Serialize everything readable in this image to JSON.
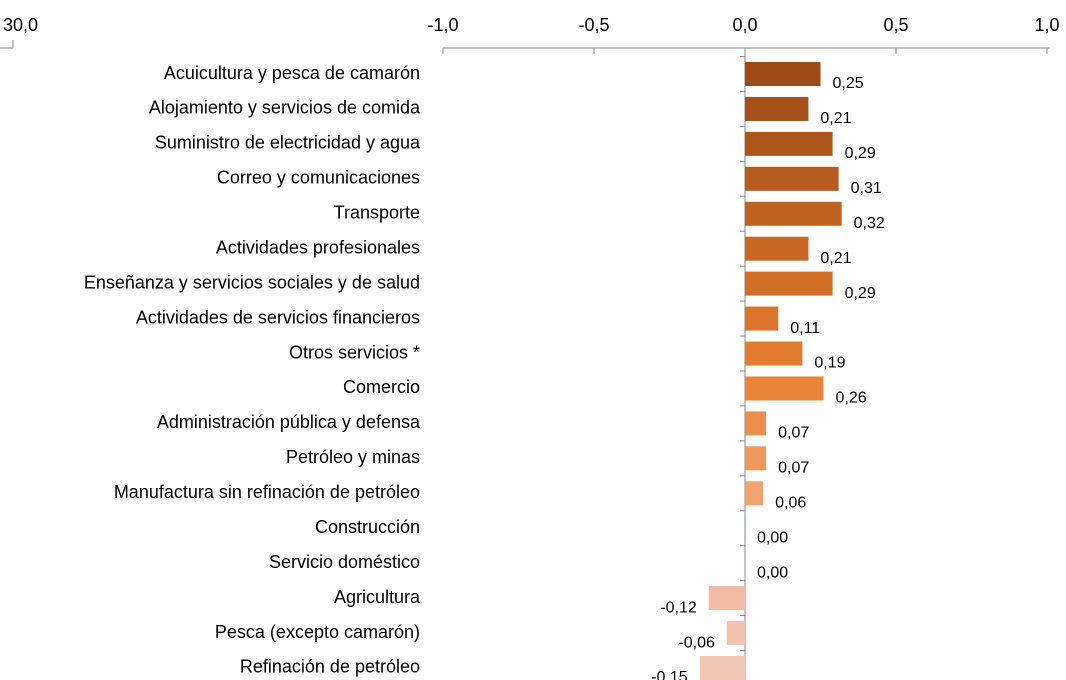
{
  "chart_data": {
    "type": "bar",
    "orientation": "horizontal",
    "categories": [
      "Acuicultura y pesca de camarón",
      "Alojamiento y servicios de comida ",
      "Suministro de electricidad y agua",
      "Correo y comunicaciones",
      "Transporte",
      "Actividades profesionales",
      "Enseñanza y servicios sociales y de salud",
      "Actividades de servicios financieros",
      "Otros servicios *",
      "Comercio",
      "Administración pública y defensa",
      "Petróleo y minas",
      "Manufactura sin refinación de petróleo",
      "Construcción",
      "Servicio doméstico",
      "Agricultura",
      "Pesca (excepto camarón)",
      "Refinación de petróleo"
    ],
    "values": [
      0.25,
      0.21,
      0.29,
      0.31,
      0.32,
      0.21,
      0.29,
      0.11,
      0.19,
      0.26,
      0.07,
      0.07,
      0.06,
      0.0,
      0.0,
      -0.12,
      -0.06,
      -0.15
    ],
    "value_labels": [
      "0,25",
      "0,21",
      "0,29",
      "0,31",
      "0,32",
      "0,21",
      "0,29",
      "0,11",
      "0,19",
      "0,26",
      "0,07",
      "0,07",
      "0,06",
      "0,00",
      "0,00",
      "-0,12",
      "-0,06",
      "-0,15"
    ],
    "colors": [
      "#9c4a16",
      "#a5501a",
      "#ad561c",
      "#b65c1e",
      "#bf6220",
      "#c96822",
      "#d16e26",
      "#d9742a",
      "#e17c30",
      "#e98438",
      "#ec8f4c",
      "#ee9a5e",
      "#efa470",
      "#f0ae82",
      "#f1b594",
      "#f2bca4",
      "#f2c2ae",
      "#f2c6b4"
    ],
    "xlim": [
      -1.0,
      1.0
    ],
    "xticks": [
      {
        "value": -1.0,
        "label": "-1,0"
      },
      {
        "value": -0.5,
        "label": "-0,5"
      },
      {
        "value": 0.0,
        "label": "0,0"
      },
      {
        "value": 0.5,
        "label": "0,5"
      },
      {
        "value": 1.0,
        "label": "1,0"
      }
    ],
    "annotations": [
      "30,0"
    ]
  }
}
